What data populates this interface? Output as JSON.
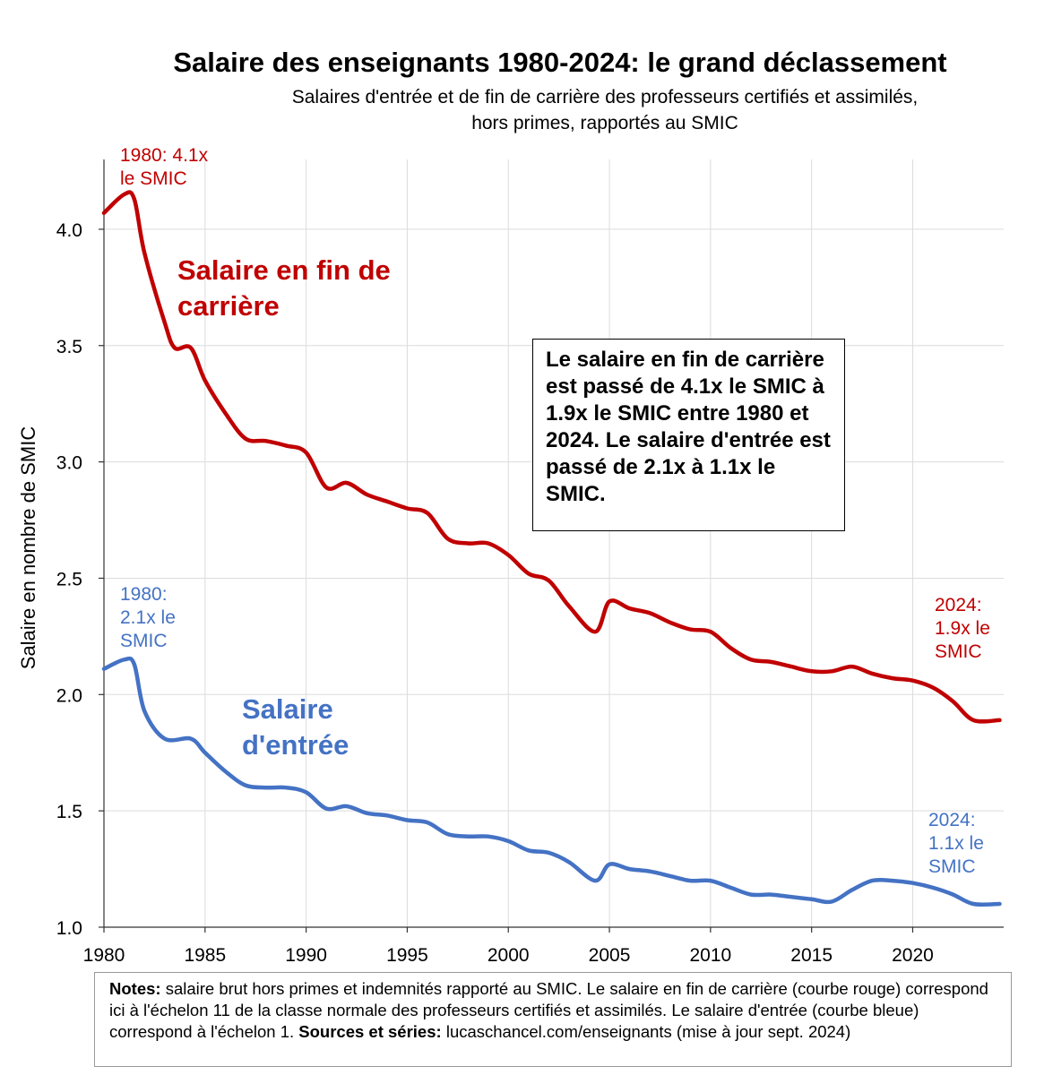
{
  "title": "Salaire des enseignants 1980-2024: le grand déclassement",
  "subtitle_line1": "Salaires d'entrée et de fin de carrière des professeurs certifiés et assimilés,",
  "subtitle_line2": "hors primes, rapportés au SMIC",
  "callout": "Le salaire en fin de carrière est passé de 4.1x le SMIC à 1.9x le SMIC entre 1980 et 2024. Le salaire d'entrée est passé de 2.1x à 1.1x le SMIC.",
  "notes": {
    "notes_label": "Notes:",
    "notes_text": " salaire brut hors primes et indemnités rapporté au SMIC. Le salaire en fin de carrière (courbe rouge) correspond ici à l'échelon 11 de la classe normale des professeurs certifiés et assimilés. Le salaire d'entrée (courbe bleue) correspond à l'échelon 1. ",
    "sources_label": "Sources et séries:",
    "sources_text": " lucaschancel.com/enseignants (mise à jour sept. 2024)"
  },
  "colors": {
    "red": "#c00000",
    "blue": "#4472c4",
    "grid": "#dcdcdc"
  },
  "chart_data": {
    "type": "line",
    "ylabel": "Salaire en nombre de SMIC",
    "xlabel": "",
    "xlim": [
      1980,
      2024.5
    ],
    "ylim": [
      1.0,
      4.3
    ],
    "x_ticks": [
      1980,
      1985,
      1990,
      1995,
      2000,
      2005,
      2010,
      2015,
      2020
    ],
    "y_ticks": [
      1.0,
      1.5,
      2.0,
      2.5,
      3.0,
      3.5,
      4.0
    ],
    "grid": true,
    "series": [
      {
        "name": "Salaire en fin de carrière",
        "label_lines": [
          "Salaire en fin de",
          "carrière"
        ],
        "color": "#c00000",
        "x": [
          1980,
          1981,
          1981.5,
          1982,
          1983,
          1983.5,
          1984.3,
          1985,
          1986,
          1987,
          1988,
          1989,
          1990,
          1991,
          1992,
          1993,
          1994,
          1995,
          1996,
          1997,
          1998,
          1999,
          2000,
          2001,
          2002,
          2003,
          2004.3,
          2005,
          2006,
          2007,
          2008,
          2009,
          2010,
          2011,
          2012,
          2013,
          2014,
          2015,
          2016,
          2017,
          2018,
          2019,
          2020,
          2021,
          2022,
          2023,
          2024.3
        ],
        "values": [
          4.07,
          4.15,
          4.13,
          3.9,
          3.6,
          3.49,
          3.49,
          3.35,
          3.21,
          3.1,
          3.09,
          3.07,
          3.04,
          2.89,
          2.91,
          2.86,
          2.83,
          2.8,
          2.78,
          2.67,
          2.65,
          2.65,
          2.6,
          2.52,
          2.49,
          2.38,
          2.27,
          2.4,
          2.37,
          2.35,
          2.31,
          2.28,
          2.27,
          2.2,
          2.15,
          2.14,
          2.12,
          2.1,
          2.1,
          2.12,
          2.09,
          2.07,
          2.06,
          2.03,
          1.97,
          1.89,
          1.89
        ],
        "start_annotation": [
          "1980: 4.1x",
          "le SMIC"
        ],
        "end_annotation": [
          "2024:",
          "1.9x le",
          "SMIC"
        ]
      },
      {
        "name": "Salaire d'entrée",
        "label_lines": [
          "Salaire",
          "d'entrée"
        ],
        "color": "#4472c4",
        "x": [
          1980,
          1981,
          1981.5,
          1982,
          1983,
          1984.3,
          1985,
          1986,
          1987,
          1988,
          1989,
          1990,
          1991,
          1992,
          1993,
          1994,
          1995,
          1996,
          1997,
          1998,
          1999,
          2000,
          2001,
          2002,
          2003,
          2004.3,
          2005,
          2006,
          2007,
          2008,
          2009,
          2010,
          2011,
          2012,
          2013,
          2014,
          2015,
          2016,
          2017,
          2018,
          2019,
          2020,
          2021,
          2022,
          2023,
          2024.3
        ],
        "values": [
          2.11,
          2.15,
          2.13,
          1.93,
          1.81,
          1.81,
          1.75,
          1.67,
          1.61,
          1.6,
          1.6,
          1.58,
          1.51,
          1.52,
          1.49,
          1.48,
          1.46,
          1.45,
          1.4,
          1.39,
          1.39,
          1.37,
          1.33,
          1.32,
          1.28,
          1.2,
          1.27,
          1.25,
          1.24,
          1.22,
          1.2,
          1.2,
          1.17,
          1.14,
          1.14,
          1.13,
          1.12,
          1.11,
          1.16,
          1.2,
          1.2,
          1.19,
          1.17,
          1.14,
          1.1,
          1.1
        ],
        "start_annotation": [
          "1980:",
          "2.1x le",
          "SMIC"
        ],
        "end_annotation": [
          "2024:",
          "1.1x le",
          "SMIC"
        ]
      }
    ]
  }
}
